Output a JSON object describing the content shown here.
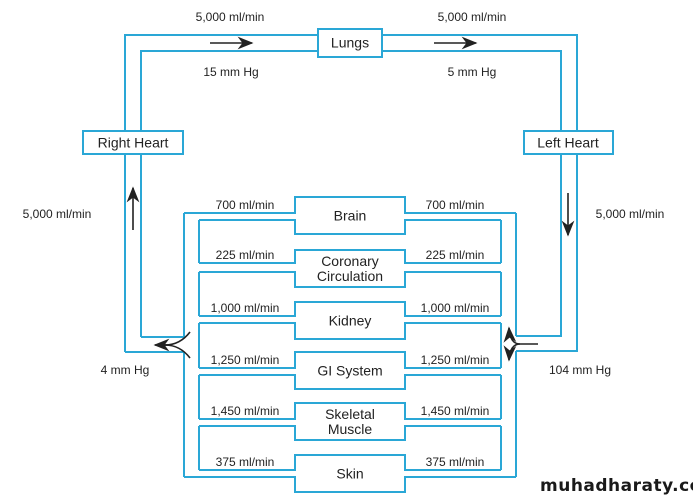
{
  "colors": {
    "vessel": "#2aa7d6",
    "arrow": "#222222"
  },
  "boxes": {
    "lungs": "Lungs",
    "right_heart": "Right Heart",
    "left_heart": "Left Heart"
  },
  "pulmonary": {
    "flow_left": "5,000 ml/min",
    "flow_right": "5,000 ml/min",
    "pressure_left": "15 mm Hg",
    "pressure_right": "5 mm Hg"
  },
  "systemic": {
    "venous_flow": "5,000 ml/min",
    "arterial_flow": "5,000 ml/min",
    "venous_pressure": "4 mm Hg",
    "arterial_pressure": "104 mm Hg"
  },
  "organs": [
    {
      "name": "Brain",
      "flow": "700 ml/min"
    },
    {
      "name": "Coronary\nCirculation",
      "flow": "225 ml/min"
    },
    {
      "name": "Kidney",
      "flow": "1,000 ml/min"
    },
    {
      "name": "GI System",
      "flow": "1,250 ml/min"
    },
    {
      "name": "Skeletal\nMuscle",
      "flow": "1,450 ml/min"
    },
    {
      "name": "Skin",
      "flow": "375 ml/min"
    }
  ],
  "watermark": "muhadharaty.com"
}
